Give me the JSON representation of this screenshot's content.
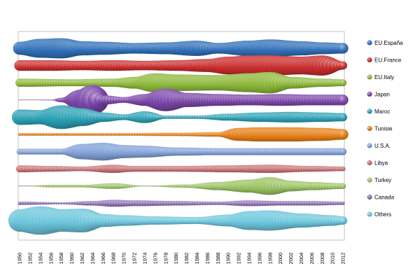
{
  "chart_data": {
    "type": "scatter",
    "subtype": "bubble-rows",
    "x_ticks": [
      1950,
      1952,
      1954,
      1956,
      1958,
      1960,
      1962,
      1964,
      1966,
      1968,
      1970,
      1972,
      1974,
      1976,
      1978,
      1980,
      1982,
      1984,
      1986,
      1988,
      1990,
      1992,
      1994,
      1996,
      1998,
      2000,
      2002,
      2004,
      2006,
      2008,
      2010,
      2012
    ],
    "x_range": [
      1950,
      2012
    ],
    "x_tick_rotation": "vertical",
    "legend_position": "right",
    "grid": false,
    "series": [
      {
        "name": "EU.España",
        "color": "#2f6fb8",
        "profile": [
          [
            1950,
            0.55
          ],
          [
            1954,
            0.8
          ],
          [
            1958,
            0.85
          ],
          [
            1962,
            0.6
          ],
          [
            1966,
            0.55
          ],
          [
            1972,
            0.45
          ],
          [
            1978,
            0.5
          ],
          [
            1984,
            0.65
          ],
          [
            1988,
            0.45
          ],
          [
            1994,
            0.65
          ],
          [
            1998,
            0.75
          ],
          [
            2004,
            0.6
          ],
          [
            2008,
            0.5
          ],
          [
            2012,
            0.45
          ]
        ]
      },
      {
        "name": "EU.France",
        "color": "#c92d2d",
        "profile": [
          [
            1950,
            0.45
          ],
          [
            1956,
            0.45
          ],
          [
            1962,
            0.4
          ],
          [
            1968,
            0.45
          ],
          [
            1974,
            0.4
          ],
          [
            1980,
            0.45
          ],
          [
            1986,
            0.55
          ],
          [
            1990,
            0.75
          ],
          [
            1994,
            0.85
          ],
          [
            1998,
            0.85
          ],
          [
            2004,
            0.75
          ],
          [
            2008,
            0.85
          ],
          [
            2012,
            0.35
          ]
        ]
      },
      {
        "name": "EU.Italy",
        "color": "#8db83a",
        "profile": [
          [
            1950,
            0.35
          ],
          [
            1960,
            0.3
          ],
          [
            1968,
            0.35
          ],
          [
            1972,
            0.5
          ],
          [
            1976,
            0.8
          ],
          [
            1980,
            0.7
          ],
          [
            1988,
            0.65
          ],
          [
            1994,
            0.8
          ],
          [
            1998,
            0.9
          ],
          [
            2002,
            0.5
          ],
          [
            2008,
            0.35
          ],
          [
            2012,
            0.3
          ]
        ]
      },
      {
        "name": "Japan",
        "color": "#7a46a8",
        "profile": [
          [
            1950,
            0.0
          ],
          [
            1956,
            0.05
          ],
          [
            1958,
            0.2
          ],
          [
            1962,
            0.9
          ],
          [
            1964,
            1.25
          ],
          [
            1966,
            0.4
          ],
          [
            1970,
            0.25
          ],
          [
            1974,
            0.5
          ],
          [
            1978,
            0.95
          ],
          [
            1982,
            0.6
          ],
          [
            1988,
            0.5
          ],
          [
            1994,
            0.45
          ],
          [
            2000,
            0.5
          ],
          [
            2006,
            0.45
          ],
          [
            2012,
            0.45
          ]
        ]
      },
      {
        "name": "Maroc",
        "color": "#2aa0b4",
        "profile": [
          [
            1950,
            0.65
          ],
          [
            1954,
            0.6
          ],
          [
            1958,
            1.0
          ],
          [
            1962,
            0.75
          ],
          [
            1966,
            0.4
          ],
          [
            1970,
            0.25
          ],
          [
            1974,
            0.5
          ],
          [
            1978,
            0.15
          ],
          [
            1984,
            0.15
          ],
          [
            1990,
            0.3
          ],
          [
            1996,
            0.4
          ],
          [
            2002,
            0.45
          ],
          [
            2008,
            0.4
          ],
          [
            2012,
            0.35
          ]
        ]
      },
      {
        "name": "Tunisie",
        "color": "#e57d14",
        "profile": [
          [
            1950,
            0.12
          ],
          [
            1960,
            0.12
          ],
          [
            1970,
            0.12
          ],
          [
            1980,
            0.15
          ],
          [
            1988,
            0.2
          ],
          [
            1992,
            0.55
          ],
          [
            1996,
            0.6
          ],
          [
            2002,
            0.6
          ],
          [
            2008,
            0.55
          ],
          [
            2012,
            0.45
          ]
        ]
      },
      {
        "name": "U.S.A.",
        "color": "#7f9fd6",
        "profile": [
          [
            1950,
            0.25
          ],
          [
            1958,
            0.25
          ],
          [
            1962,
            0.65
          ],
          [
            1966,
            0.75
          ],
          [
            1970,
            0.55
          ],
          [
            1974,
            0.5
          ],
          [
            1980,
            0.35
          ],
          [
            1988,
            0.3
          ],
          [
            1996,
            0.3
          ],
          [
            2004,
            0.3
          ],
          [
            2012,
            0.3
          ]
        ]
      },
      {
        "name": "Libya",
        "color": "#c46c70",
        "profile": [
          [
            1950,
            0.3
          ],
          [
            1956,
            0.25
          ],
          [
            1962,
            0.2
          ],
          [
            1968,
            0.35
          ],
          [
            1972,
            0.25
          ],
          [
            1980,
            0.25
          ],
          [
            1990,
            0.3
          ],
          [
            1998,
            0.35
          ],
          [
            2006,
            0.25
          ],
          [
            2012,
            0.2
          ]
        ]
      },
      {
        "name": "Turkey",
        "color": "#9ac262",
        "profile": [
          [
            1950,
            0.0
          ],
          [
            1956,
            0.12
          ],
          [
            1962,
            0.12
          ],
          [
            1968,
            0.25
          ],
          [
            1974,
            0.05
          ],
          [
            1982,
            0.15
          ],
          [
            1988,
            0.35
          ],
          [
            1994,
            0.55
          ],
          [
            1998,
            0.75
          ],
          [
            2002,
            0.45
          ],
          [
            2006,
            0.35
          ],
          [
            2012,
            0.25
          ]
        ]
      },
      {
        "name": "Canada",
        "color": "#8c6bb4",
        "profile": [
          [
            1950,
            0.15
          ],
          [
            1958,
            0.1
          ],
          [
            1964,
            0.2
          ],
          [
            1968,
            0.3
          ],
          [
            1972,
            0.25
          ],
          [
            1980,
            0.2
          ],
          [
            1988,
            0.15
          ],
          [
            1994,
            0.25
          ],
          [
            2000,
            0.2
          ],
          [
            2006,
            0.2
          ],
          [
            2012,
            0.15
          ]
        ]
      },
      {
        "name": "Others",
        "color": "#6cc6dc",
        "profile": [
          [
            1950,
            0.95
          ],
          [
            1954,
            1.2
          ],
          [
            1958,
            0.95
          ],
          [
            1962,
            1.0
          ],
          [
            1966,
            0.55
          ],
          [
            1970,
            0.45
          ],
          [
            1976,
            0.35
          ],
          [
            1984,
            0.3
          ],
          [
            1990,
            0.5
          ],
          [
            1994,
            0.8
          ],
          [
            1998,
            0.85
          ],
          [
            2004,
            0.6
          ],
          [
            2010,
            0.45
          ],
          [
            2012,
            0.35
          ]
        ]
      }
    ]
  }
}
